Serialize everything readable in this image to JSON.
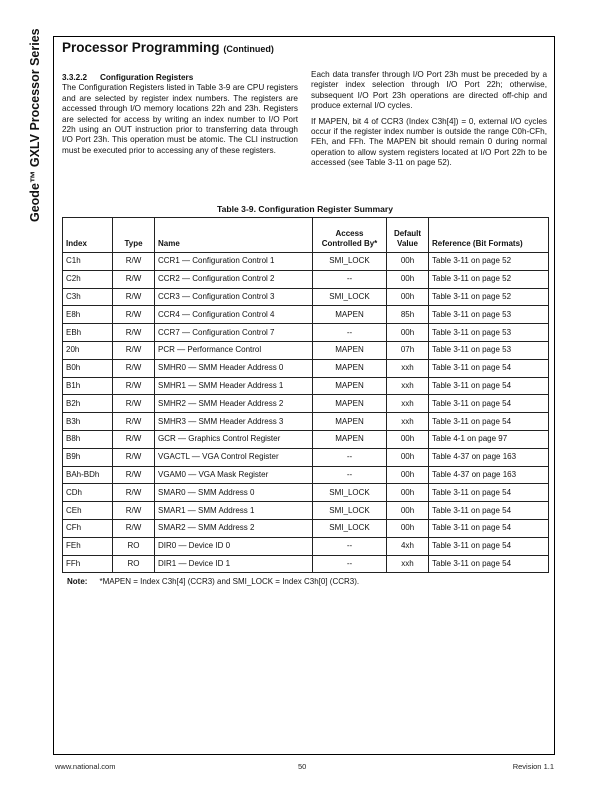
{
  "side_title": "Geode™ GXLV Processor Series",
  "header": {
    "title": "Processor Programming",
    "continued": "(Continued)"
  },
  "section": {
    "number": "3.3.2.2",
    "heading": "Configuration Registers",
    "left_paragraph": "The Configuration Registers listed in Table 3-9 are CPU registers and are selected by register index numbers. The registers are accessed through I/O memory locations 22h and 23h. Registers are selected for access by writing an index number to I/O Port 22h using an OUT instruction prior to transferring data through I/O Port 23h. This operation must be atomic. The CLI instruction must be executed prior to accessing any of these registers.",
    "right_paragraph_1": "Each data transfer through I/O Port 23h must be preceded by a register index selection through I/O Port 22h; otherwise, subsequent I/O Port 23h operations are directed off-chip and produce external I/O cycles.",
    "right_paragraph_2": "If MAPEN, bit 4 of CCR3 (Index C3h[4]) = 0, external I/O cycles occur if the register index number is outside the range C0h-CFh, FEh, and FFh. The MAPEN bit should remain 0 during normal operation to allow system registers located at I/O Port 22h to be accessed (see Table 3-11 on page 52)."
  },
  "table": {
    "caption": "Table 3-9.  Configuration Register Summary",
    "headers": [
      "Index",
      "Type",
      "Name",
      "Access Controlled By*",
      "Default Value",
      "Reference (Bit Formats)"
    ],
    "rows": [
      [
        "C1h",
        "R/W",
        "CCR1 — Configuration Control 1",
        "SMI_LOCK",
        "00h",
        "Table 3-11 on page 52"
      ],
      [
        "C2h",
        "R/W",
        "CCR2 — Configuration Control 2",
        "--",
        "00h",
        "Table 3-11 on page 52"
      ],
      [
        "C3h",
        "R/W",
        "CCR3 — Configuration Control 3",
        "SMI_LOCK",
        "00h",
        "Table 3-11 on page 52"
      ],
      [
        "E8h",
        "R/W",
        "CCR4 — Configuration Control 4",
        "MAPEN",
        "85h",
        "Table 3-11 on page 53"
      ],
      [
        "EBh",
        "R/W",
        "CCR7 — Configuration Control 7",
        "--",
        "00h",
        "Table 3-11 on page 53"
      ],
      [
        "20h",
        "R/W",
        "PCR — Performance Control",
        "MAPEN",
        "07h",
        "Table 3-11 on page 53"
      ],
      [
        "B0h",
        "R/W",
        "SMHR0 — SMM Header Address 0",
        "MAPEN",
        "xxh",
        "Table 3-11 on page 54"
      ],
      [
        "B1h",
        "R/W",
        "SMHR1 — SMM Header Address 1",
        "MAPEN",
        "xxh",
        "Table 3-11 on page 54"
      ],
      [
        "B2h",
        "R/W",
        "SMHR2 — SMM Header Address 2",
        "MAPEN",
        "xxh",
        "Table 3-11 on page 54"
      ],
      [
        "B3h",
        "R/W",
        "SMHR3 — SMM Header Address 3",
        "MAPEN",
        "xxh",
        "Table 3-11 on page 54"
      ],
      [
        "B8h",
        "R/W",
        "GCR — Graphics Control Register",
        "MAPEN",
        "00h",
        "Table 4-1 on page 97"
      ],
      [
        "B9h",
        "R/W",
        "VGACTL — VGA Control Register",
        "--",
        "00h",
        "Table 4-37 on page 163"
      ],
      [
        "BAh-BDh",
        "R/W",
        "VGAM0 — VGA Mask Register",
        "--",
        "00h",
        "Table 4-37 on page 163"
      ],
      [
        "CDh",
        "R/W",
        "SMAR0 — SMM Address 0",
        "SMI_LOCK",
        "00h",
        "Table 3-11 on page 54"
      ],
      [
        "CEh",
        "R/W",
        "SMAR1 — SMM Address 1",
        "SMI_LOCK",
        "00h",
        "Table 3-11 on page 54"
      ],
      [
        "CFh",
        "R/W",
        "SMAR2 — SMM Address 2",
        "SMI_LOCK",
        "00h",
        "Table 3-11 on page 54"
      ],
      [
        "FEh",
        "RO",
        "DIR0 — Device ID 0",
        "--",
        "4xh",
        "Table 3-11 on page 54"
      ],
      [
        "FFh",
        "RO",
        "DIR1 — Device ID 1",
        "--",
        "xxh",
        "Table 3-11 on page 54"
      ]
    ],
    "note_label": "Note:",
    "note_text": "*MAPEN = Index C3h[4] (CCR3) and SMI_LOCK = Index C3h[0] (CCR3)."
  },
  "footer": {
    "website": "www.national.com",
    "page_number": "50",
    "revision": "Revision 1.1"
  }
}
